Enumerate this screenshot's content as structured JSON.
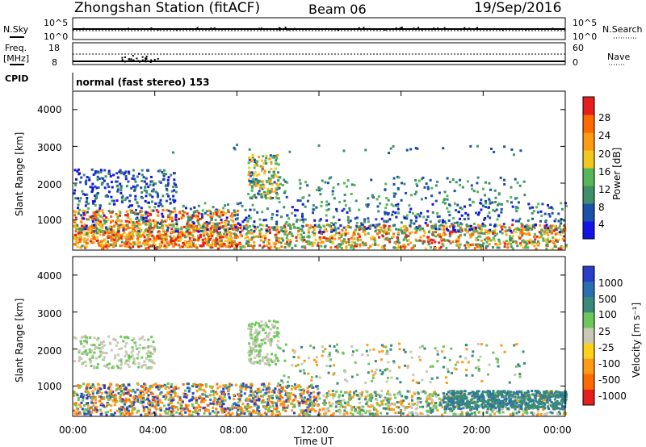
{
  "header": {
    "station": "Zhongshan Station (fitACF)",
    "beam": "Beam 06",
    "date": "19/Sep/2016"
  },
  "top_panels": {
    "nsky_label": "N.Sky",
    "nsearch_label": "N.Search",
    "nsky_ticks": [
      "10^5",
      "10^0"
    ],
    "nsearch_ticks": [
      "10^5",
      "10^0"
    ],
    "freq_label_1": "Freq.",
    "freq_label_2": "[MHz]",
    "freq_ticks": [
      "18",
      "8"
    ],
    "nave_label": "Nave",
    "nave_ticks": [
      "60",
      "0"
    ],
    "cpid_label": "CPID",
    "cpid_value": "normal (fast stereo) 153"
  },
  "colors": {
    "power_scale": [
      "#1414e6",
      "#1d50a8",
      "#3f8f6a",
      "#55b75a",
      "#f0c81e",
      "#ff9a14",
      "#ff6a00",
      "#e61e1e"
    ],
    "velocity_scale": [
      "#2a3ec8",
      "#2a6fb0",
      "#3a8a7a",
      "#6cc85a",
      "#c8c8b4",
      "#ffd11a",
      "#ff9a14",
      "#ff6a00",
      "#e61e1e"
    ]
  },
  "chart_data": [
    {
      "type": "heatmap",
      "panel": "power",
      "ylabel": "Slant Range [km]",
      "ylim": [
        180,
        4500
      ],
      "yticks": [
        "1000",
        "2000",
        "3000",
        "4000"
      ],
      "colorbar_label": "Power [dB]",
      "colorbar_ticks": [
        "4",
        "8",
        "12",
        "16",
        "20",
        "24",
        "28"
      ],
      "clim": [
        0,
        32
      ]
    },
    {
      "type": "heatmap",
      "panel": "velocity",
      "ylabel": "Slant Range [km]",
      "ylim": [
        180,
        4500
      ],
      "yticks": [
        "1000",
        "2000",
        "3000",
        "4000"
      ],
      "colorbar_label": "Velocity [m s⁻¹]",
      "colorbar_ticks": [
        "1000",
        "500",
        "100",
        "25",
        "-25",
        "-100",
        "-500",
        "-1000"
      ]
    }
  ],
  "x_axis": {
    "ticks": [
      "00:00",
      "04:00",
      "08:00",
      "12:00",
      "16:00",
      "20:00",
      "00:00"
    ],
    "label": "Time UT"
  }
}
